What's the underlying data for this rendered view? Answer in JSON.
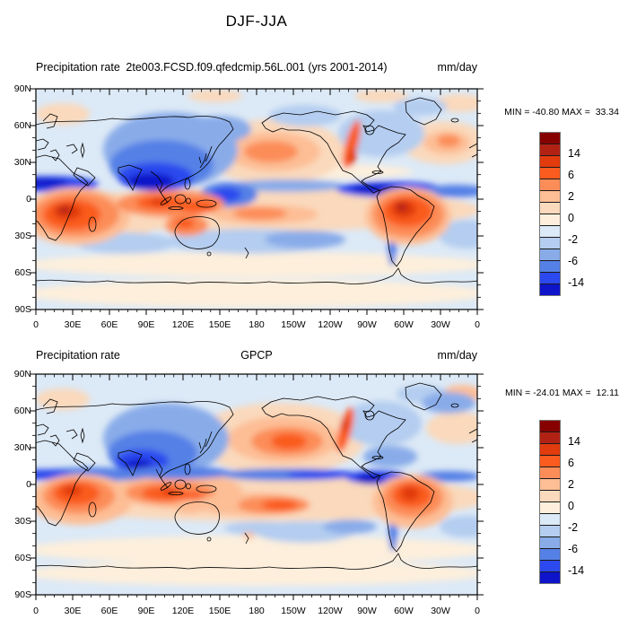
{
  "figure": {
    "title": "DJF-JJA"
  },
  "panels": [
    {
      "id": "model",
      "header": {
        "left": "Precipitation rate",
        "center": "2te003.FCSD.f09.qfedcmip.56L.001 (yrs 2001-2014)",
        "right": "mm/day"
      },
      "stats": "MIN = -40.80 MAX =  33.34"
    },
    {
      "id": "gpcp",
      "header": {
        "left": "Precipitation rate",
        "center": "GPCP",
        "right": "mm/day"
      },
      "stats": "MIN = -24.01 MAX =  12.11"
    }
  ],
  "axes": {
    "lon_ticks": [
      "0",
      "30E",
      "60E",
      "90E",
      "120E",
      "150E",
      "180",
      "150W",
      "120W",
      "90W",
      "60W",
      "30W",
      "0"
    ],
    "lat_ticks": [
      "90N",
      "60N",
      "30N",
      "0",
      "30S",
      "60S",
      "90S"
    ]
  },
  "colorbar": {
    "colors": [
      "#870000",
      "#B22214",
      "#E13B0E",
      "#FA5B1E",
      "#FC8D59",
      "#FDBE95",
      "#FAD9BC",
      "#FDEFDC",
      "#DCE9F6",
      "#B4CDF0",
      "#89ACE9",
      "#5580E6",
      "#2B49EE",
      "#0E14C9"
    ],
    "labels": [
      "14",
      "6",
      "2",
      "0",
      "-2",
      "-6",
      "-14"
    ]
  },
  "chart_data": [
    {
      "type": "heatmap",
      "subtype": "filled-contour world map, cylindrical equidistant",
      "figure_title": "DJF-JJA",
      "title": "2te003.FCSD.f09.qfedcmip.56L.001 (yrs 2001-2014)",
      "variable": "Precipitation rate",
      "units": "mm/day",
      "min": -40.8,
      "max": 33.34,
      "x_ticks": [
        "0",
        "30E",
        "60E",
        "90E",
        "120E",
        "150E",
        "180",
        "150W",
        "120W",
        "90W",
        "60W",
        "30W",
        "0"
      ],
      "y_ticks": [
        "90N",
        "60N",
        "30N",
        "0",
        "30S",
        "60S",
        "90S"
      ],
      "colorbar_labeled_levels": [
        14,
        6,
        2,
        0,
        -2,
        -6,
        -14
      ],
      "colorbar_colors_top_to_bottom": [
        "#870000",
        "#B22214",
        "#E13B0E",
        "#FA5B1E",
        "#FC8D59",
        "#FDBE95",
        "#FAD9BC",
        "#FDEFDC",
        "#DCE9F6",
        "#B4CDF0",
        "#89ACE9",
        "#5580E6",
        "#2B49EE",
        "#0E14C9"
      ],
      "legend_position": "right",
      "grid": false
    },
    {
      "type": "heatmap",
      "subtype": "filled-contour world map, cylindrical equidistant",
      "figure_title": "DJF-JJA",
      "title": "GPCP",
      "variable": "Precipitation rate",
      "units": "mm/day",
      "min": -24.01,
      "max": 12.11,
      "x_ticks": [
        "0",
        "30E",
        "60E",
        "90E",
        "120E",
        "150E",
        "180",
        "150W",
        "120W",
        "90W",
        "60W",
        "30W",
        "0"
      ],
      "y_ticks": [
        "90N",
        "60N",
        "30N",
        "0",
        "30S",
        "60S",
        "90S"
      ],
      "colorbar_labeled_levels": [
        14,
        6,
        2,
        0,
        -2,
        -6,
        -14
      ],
      "colorbar_colors_top_to_bottom": [
        "#870000",
        "#B22214",
        "#E13B0E",
        "#FA5B1E",
        "#FC8D59",
        "#FDBE95",
        "#FAD9BC",
        "#FDEFDC",
        "#DCE9F6",
        "#B4CDF0",
        "#89ACE9",
        "#5580E6",
        "#2B49EE",
        "#0E14C9"
      ],
      "legend_position": "right",
      "grid": false
    }
  ]
}
